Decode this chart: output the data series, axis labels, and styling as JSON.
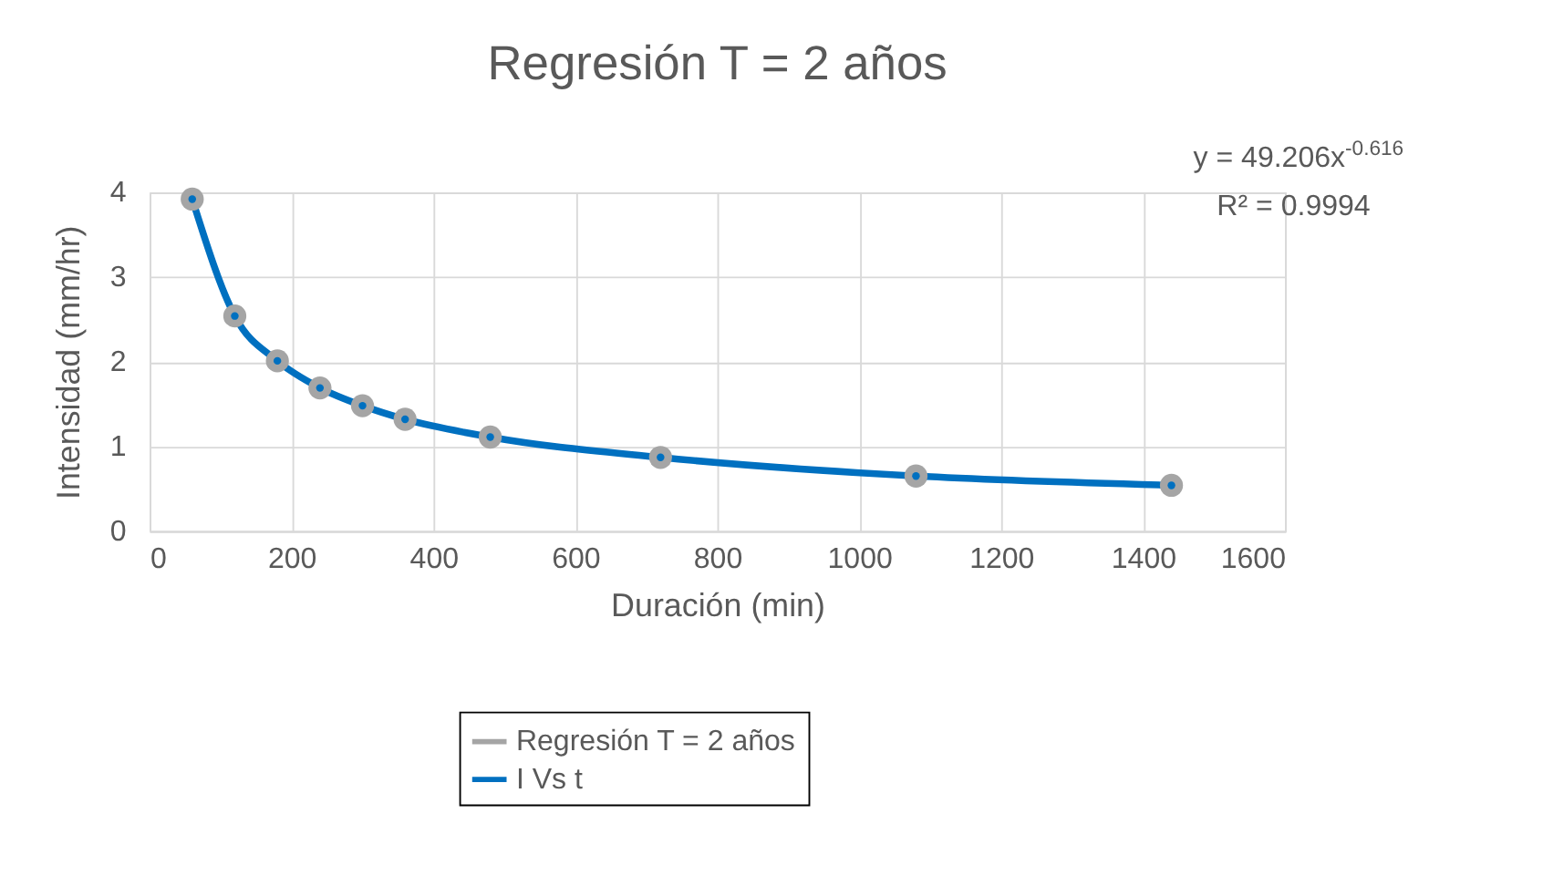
{
  "chart_data": {
    "type": "line",
    "title": "Regresión T = 2 años",
    "xlabel": "Duración (min)",
    "ylabel": "Intensidad (mm/hr)",
    "x": [
      60,
      120,
      180,
      240,
      300,
      360,
      480,
      720,
      1080,
      1440
    ],
    "series": [
      {
        "name": "Regresión T = 2 años",
        "type": "scatter",
        "color": "#a5a5a5",
        "marker": "circle",
        "values": [
          3.92,
          2.54,
          2.01,
          1.69,
          1.48,
          1.32,
          1.11,
          0.87,
          0.65,
          0.54
        ]
      },
      {
        "name": "I Vs t",
        "color": "#0070c0",
        "marker": "circle",
        "values": [
          3.92,
          2.54,
          2.01,
          1.69,
          1.48,
          1.32,
          1.11,
          0.87,
          0.65,
          0.54
        ]
      }
    ],
    "xlim": [
      0,
      1600
    ],
    "xticks": [
      0,
      200,
      400,
      600,
      800,
      1000,
      1200,
      1400,
      1600
    ],
    "ylim": [
      0,
      4
    ],
    "yticks": [
      0,
      1,
      2,
      3,
      4
    ],
    "grid": true,
    "legend": "bottom",
    "line_style": "solid",
    "annotations": [
      "y = 49.206x$^{-0.616}$",
      "R² = 0.9994"
    ]
  }
}
